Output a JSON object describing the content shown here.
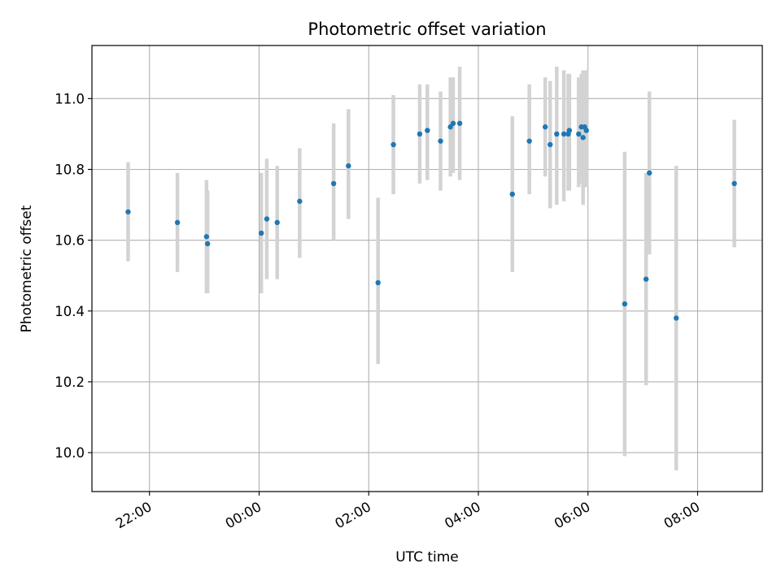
{
  "chart_data": {
    "type": "scatter",
    "title": "Photometric offset variation",
    "xlabel": "UTC time",
    "ylabel": "Photometric offset",
    "x_unit": "UTC hours (values past 24 are after midnight)",
    "xlim": [
      20.95,
      33.18
    ],
    "ylim": [
      9.89,
      11.15
    ],
    "x_ticks": [
      {
        "value": 22,
        "label": "22:00"
      },
      {
        "value": 24,
        "label": "00:00"
      },
      {
        "value": 26,
        "label": "02:00"
      },
      {
        "value": 28,
        "label": "04:00"
      },
      {
        "value": 30,
        "label": "06:00"
      },
      {
        "value": 32,
        "label": "08:00"
      }
    ],
    "y_ticks": [
      {
        "value": 10.0,
        "label": "10.0"
      },
      {
        "value": 10.2,
        "label": "10.2"
      },
      {
        "value": 10.4,
        "label": "10.4"
      },
      {
        "value": 10.6,
        "label": "10.6"
      },
      {
        "value": 10.8,
        "label": "10.8"
      },
      {
        "value": 11.0,
        "label": "11.0"
      }
    ],
    "grid": true,
    "colors": {
      "point": "#1f77b4",
      "errorbar": "#d3d3d3",
      "grid": "#b0b0b0"
    },
    "points": [
      {
        "x": 21.61,
        "y": 10.68,
        "lo": 10.54,
        "hi": 10.82
      },
      {
        "x": 22.51,
        "y": 10.65,
        "lo": 10.51,
        "hi": 10.79
      },
      {
        "x": 23.04,
        "y": 10.61,
        "lo": 10.45,
        "hi": 10.77
      },
      {
        "x": 23.06,
        "y": 10.59,
        "lo": 10.45,
        "hi": 10.74
      },
      {
        "x": 24.04,
        "y": 10.62,
        "lo": 10.45,
        "hi": 10.79
      },
      {
        "x": 24.14,
        "y": 10.66,
        "lo": 10.49,
        "hi": 10.83
      },
      {
        "x": 24.33,
        "y": 10.65,
        "lo": 10.49,
        "hi": 10.81
      },
      {
        "x": 24.74,
        "y": 10.71,
        "lo": 10.55,
        "hi": 10.86
      },
      {
        "x": 25.36,
        "y": 10.76,
        "lo": 10.6,
        "hi": 10.93
      },
      {
        "x": 25.63,
        "y": 10.81,
        "lo": 10.66,
        "hi": 10.97
      },
      {
        "x": 26.17,
        "y": 10.48,
        "lo": 10.25,
        "hi": 10.72
      },
      {
        "x": 26.45,
        "y": 10.87,
        "lo": 10.73,
        "hi": 11.01
      },
      {
        "x": 26.93,
        "y": 10.9,
        "lo": 10.76,
        "hi": 11.04
      },
      {
        "x": 27.07,
        "y": 10.91,
        "lo": 10.77,
        "hi": 11.04
      },
      {
        "x": 27.31,
        "y": 10.88,
        "lo": 10.74,
        "hi": 11.02
      },
      {
        "x": 27.49,
        "y": 10.92,
        "lo": 10.78,
        "hi": 11.06
      },
      {
        "x": 27.54,
        "y": 10.93,
        "lo": 10.79,
        "hi": 11.06
      },
      {
        "x": 27.66,
        "y": 10.93,
        "lo": 10.77,
        "hi": 11.09
      },
      {
        "x": 28.62,
        "y": 10.73,
        "lo": 10.51,
        "hi": 10.95
      },
      {
        "x": 28.93,
        "y": 10.88,
        "lo": 10.73,
        "hi": 11.04
      },
      {
        "x": 29.22,
        "y": 10.92,
        "lo": 10.78,
        "hi": 11.06
      },
      {
        "x": 29.31,
        "y": 10.87,
        "lo": 10.69,
        "hi": 11.05
      },
      {
        "x": 29.43,
        "y": 10.9,
        "lo": 10.7,
        "hi": 11.09
      },
      {
        "x": 29.56,
        "y": 10.9,
        "lo": 10.71,
        "hi": 11.08
      },
      {
        "x": 29.64,
        "y": 10.9,
        "lo": 10.74,
        "hi": 11.07
      },
      {
        "x": 29.66,
        "y": 10.91,
        "lo": 10.74,
        "hi": 11.07
      },
      {
        "x": 29.83,
        "y": 10.9,
        "lo": 10.75,
        "hi": 11.06
      },
      {
        "x": 29.88,
        "y": 10.92,
        "lo": 10.76,
        "hi": 11.07
      },
      {
        "x": 29.91,
        "y": 10.89,
        "lo": 10.7,
        "hi": 11.08
      },
      {
        "x": 29.94,
        "y": 10.92,
        "lo": 10.75,
        "hi": 11.08
      },
      {
        "x": 29.97,
        "y": 10.91,
        "lo": 10.75,
        "hi": 11.08
      },
      {
        "x": 30.67,
        "y": 10.42,
        "lo": 9.99,
        "hi": 10.85
      },
      {
        "x": 31.06,
        "y": 10.49,
        "lo": 10.19,
        "hi": 10.79
      },
      {
        "x": 31.12,
        "y": 10.79,
        "lo": 10.56,
        "hi": 11.02
      },
      {
        "x": 31.61,
        "y": 10.38,
        "lo": 9.95,
        "hi": 10.81
      },
      {
        "x": 32.67,
        "y": 10.76,
        "lo": 10.58,
        "hi": 10.94
      }
    ]
  }
}
